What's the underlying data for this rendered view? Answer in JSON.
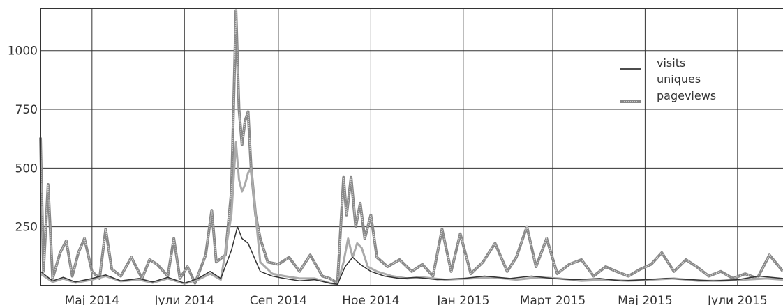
{
  "chart_data": {
    "type": "line",
    "title": "",
    "xlabel": "",
    "ylabel": "",
    "x_range": [
      "2014-03-28",
      "2015-07-31"
    ],
    "ylim": [
      0,
      1180
    ],
    "y_ticks": [
      250,
      500,
      750,
      1000
    ],
    "x_ticks": [
      {
        "date": "2014-05-01",
        "label": "Мај 2014"
      },
      {
        "date": "2014-07-01",
        "label": "Јули 2014"
      },
      {
        "date": "2014-09-01",
        "label": "Сеп 2014"
      },
      {
        "date": "2014-11-01",
        "label": "Ное 2014"
      },
      {
        "date": "2015-01-01",
        "label": "Јан 2015"
      },
      {
        "date": "2015-03-01",
        "label": "Март 2015"
      },
      {
        "date": "2015-05-01",
        "label": "Мај 2015"
      },
      {
        "date": "2015-07-01",
        "label": "Јули 2015"
      }
    ],
    "grid": true,
    "legend_position": "top-right",
    "series": [
      {
        "name": "visits",
        "color": "#333333",
        "style": "solid",
        "points": [
          [
            "2014-03-28",
            60
          ],
          [
            "2014-04-05",
            20
          ],
          [
            "2014-04-12",
            35
          ],
          [
            "2014-04-20",
            15
          ],
          [
            "2014-05-01",
            30
          ],
          [
            "2014-05-10",
            45
          ],
          [
            "2014-05-20",
            20
          ],
          [
            "2014-06-01",
            30
          ],
          [
            "2014-06-10",
            15
          ],
          [
            "2014-06-20",
            35
          ],
          [
            "2014-07-01",
            10
          ],
          [
            "2014-07-10",
            30
          ],
          [
            "2014-07-18",
            60
          ],
          [
            "2014-07-25",
            30
          ],
          [
            "2014-08-01",
            150
          ],
          [
            "2014-08-05",
            250
          ],
          [
            "2014-08-08",
            200
          ],
          [
            "2014-08-12",
            180
          ],
          [
            "2014-08-16",
            120
          ],
          [
            "2014-08-20",
            60
          ],
          [
            "2014-08-28",
            40
          ],
          [
            "2014-09-05",
            30
          ],
          [
            "2014-09-15",
            20
          ],
          [
            "2014-09-25",
            25
          ],
          [
            "2014-10-05",
            10
          ],
          [
            "2014-10-10",
            5
          ],
          [
            "2014-10-15",
            80
          ],
          [
            "2014-10-20",
            120
          ],
          [
            "2014-10-25",
            90
          ],
          [
            "2014-11-01",
            60
          ],
          [
            "2014-11-10",
            40
          ],
          [
            "2014-11-20",
            30
          ],
          [
            "2014-12-01",
            35
          ],
          [
            "2014-12-15",
            25
          ],
          [
            "2015-01-01",
            30
          ],
          [
            "2015-01-15",
            40
          ],
          [
            "2015-02-01",
            30
          ],
          [
            "2015-02-15",
            40
          ],
          [
            "2015-03-01",
            30
          ],
          [
            "2015-03-15",
            25
          ],
          [
            "2015-04-01",
            30
          ],
          [
            "2015-04-15",
            20
          ],
          [
            "2015-05-01",
            25
          ],
          [
            "2015-05-15",
            30
          ],
          [
            "2015-06-01",
            25
          ],
          [
            "2015-06-15",
            20
          ],
          [
            "2015-07-01",
            25
          ],
          [
            "2015-07-15",
            40
          ],
          [
            "2015-07-31",
            30
          ]
        ]
      },
      {
        "name": "uniques",
        "color": "#aaaaaa",
        "style": "double",
        "points": [
          [
            "2014-03-28",
            50
          ],
          [
            "2014-04-05",
            15
          ],
          [
            "2014-04-12",
            30
          ],
          [
            "2014-04-20",
            12
          ],
          [
            "2014-05-01",
            25
          ],
          [
            "2014-05-10",
            40
          ],
          [
            "2014-05-20",
            18
          ],
          [
            "2014-06-01",
            25
          ],
          [
            "2014-06-10",
            12
          ],
          [
            "2014-06-20",
            30
          ],
          [
            "2014-07-01",
            8
          ],
          [
            "2014-07-10",
            25
          ],
          [
            "2014-07-18",
            50
          ],
          [
            "2014-07-25",
            25
          ],
          [
            "2014-08-01",
            300
          ],
          [
            "2014-08-04",
            610
          ],
          [
            "2014-08-06",
            450
          ],
          [
            "2014-08-08",
            400
          ],
          [
            "2014-08-10",
            430
          ],
          [
            "2014-08-12",
            480
          ],
          [
            "2014-08-14",
            500
          ],
          [
            "2014-08-17",
            300
          ],
          [
            "2014-08-20",
            100
          ],
          [
            "2014-08-28",
            50
          ],
          [
            "2014-09-05",
            40
          ],
          [
            "2014-09-15",
            30
          ],
          [
            "2014-09-25",
            30
          ],
          [
            "2014-10-05",
            10
          ],
          [
            "2014-10-10",
            5
          ],
          [
            "2014-10-14",
            100
          ],
          [
            "2014-10-17",
            200
          ],
          [
            "2014-10-20",
            120
          ],
          [
            "2014-10-23",
            180
          ],
          [
            "2014-10-26",
            160
          ],
          [
            "2014-10-30",
            80
          ],
          [
            "2014-11-05",
            60
          ],
          [
            "2014-11-15",
            40
          ],
          [
            "2014-11-25",
            30
          ],
          [
            "2014-12-05",
            35
          ],
          [
            "2014-12-20",
            25
          ],
          [
            "2015-01-05",
            30
          ],
          [
            "2015-01-20",
            35
          ],
          [
            "2015-02-05",
            25
          ],
          [
            "2015-02-20",
            35
          ],
          [
            "2015-03-05",
            30
          ],
          [
            "2015-03-20",
            20
          ],
          [
            "2015-04-05",
            25
          ],
          [
            "2015-04-20",
            20
          ],
          [
            "2015-05-05",
            25
          ],
          [
            "2015-05-20",
            30
          ],
          [
            "2015-06-05",
            20
          ],
          [
            "2015-06-20",
            20
          ],
          [
            "2015-07-05",
            25
          ],
          [
            "2015-07-20",
            30
          ],
          [
            "2015-07-31",
            25
          ]
        ]
      },
      {
        "name": "pageviews",
        "color": "#888888",
        "style": "dotted-band",
        "points": [
          [
            "2014-03-28",
            630
          ],
          [
            "2014-03-30",
            60
          ],
          [
            "2014-04-02",
            430
          ],
          [
            "2014-04-05",
            30
          ],
          [
            "2014-04-10",
            140
          ],
          [
            "2014-04-14",
            190
          ],
          [
            "2014-04-18",
            40
          ],
          [
            "2014-04-22",
            140
          ],
          [
            "2014-04-26",
            200
          ],
          [
            "2014-05-01",
            60
          ],
          [
            "2014-05-06",
            30
          ],
          [
            "2014-05-10",
            240
          ],
          [
            "2014-05-14",
            70
          ],
          [
            "2014-05-20",
            40
          ],
          [
            "2014-05-27",
            120
          ],
          [
            "2014-06-03",
            30
          ],
          [
            "2014-06-08",
            110
          ],
          [
            "2014-06-13",
            90
          ],
          [
            "2014-06-20",
            40
          ],
          [
            "2014-06-24",
            200
          ],
          [
            "2014-06-28",
            30
          ],
          [
            "2014-07-03",
            80
          ],
          [
            "2014-07-08",
            10
          ],
          [
            "2014-07-15",
            130
          ],
          [
            "2014-07-19",
            320
          ],
          [
            "2014-07-22",
            100
          ],
          [
            "2014-07-28",
            130
          ],
          [
            "2014-08-01",
            400
          ],
          [
            "2014-08-03",
            900
          ],
          [
            "2014-08-04",
            1170
          ],
          [
            "2014-08-06",
            750
          ],
          [
            "2014-08-08",
            600
          ],
          [
            "2014-08-10",
            700
          ],
          [
            "2014-08-12",
            740
          ],
          [
            "2014-08-14",
            500
          ],
          [
            "2014-08-17",
            300
          ],
          [
            "2014-08-20",
            200
          ],
          [
            "2014-08-25",
            100
          ],
          [
            "2014-09-01",
            90
          ],
          [
            "2014-09-08",
            120
          ],
          [
            "2014-09-15",
            60
          ],
          [
            "2014-09-22",
            130
          ],
          [
            "2014-09-30",
            40
          ],
          [
            "2014-10-05",
            30
          ],
          [
            "2014-10-10",
            10
          ],
          [
            "2014-10-14",
            460
          ],
          [
            "2014-10-16",
            300
          ],
          [
            "2014-10-19",
            460
          ],
          [
            "2014-10-22",
            250
          ],
          [
            "2014-10-25",
            350
          ],
          [
            "2014-10-28",
            200
          ],
          [
            "2014-11-01",
            300
          ],
          [
            "2014-11-05",
            120
          ],
          [
            "2014-11-12",
            80
          ],
          [
            "2014-11-20",
            110
          ],
          [
            "2014-11-28",
            60
          ],
          [
            "2014-12-05",
            90
          ],
          [
            "2014-12-12",
            40
          ],
          [
            "2014-12-18",
            240
          ],
          [
            "2014-12-24",
            60
          ],
          [
            "2014-12-30",
            220
          ],
          [
            "2015-01-06",
            50
          ],
          [
            "2015-01-14",
            100
          ],
          [
            "2015-01-22",
            180
          ],
          [
            "2015-01-30",
            60
          ],
          [
            "2015-02-05",
            120
          ],
          [
            "2015-02-12",
            250
          ],
          [
            "2015-02-18",
            80
          ],
          [
            "2015-02-25",
            200
          ],
          [
            "2015-03-04",
            50
          ],
          [
            "2015-03-12",
            90
          ],
          [
            "2015-03-20",
            110
          ],
          [
            "2015-03-28",
            40
          ],
          [
            "2015-04-05",
            80
          ],
          [
            "2015-04-12",
            60
          ],
          [
            "2015-04-20",
            40
          ],
          [
            "2015-04-28",
            70
          ],
          [
            "2015-05-05",
            90
          ],
          [
            "2015-05-12",
            140
          ],
          [
            "2015-05-20",
            60
          ],
          [
            "2015-05-28",
            110
          ],
          [
            "2015-06-04",
            80
          ],
          [
            "2015-06-12",
            40
          ],
          [
            "2015-06-20",
            60
          ],
          [
            "2015-06-28",
            30
          ],
          [
            "2015-07-06",
            50
          ],
          [
            "2015-07-14",
            30
          ],
          [
            "2015-07-22",
            130
          ],
          [
            "2015-07-31",
            60
          ]
        ]
      }
    ]
  }
}
